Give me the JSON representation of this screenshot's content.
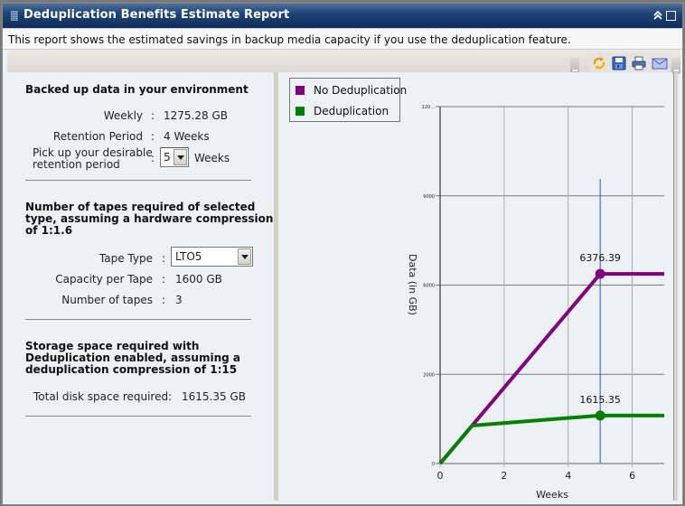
{
  "window": {
    "title": "Deduplication Benefits Estimate Report",
    "description": "This report shows the estimated savings in backup media capacity if you use the deduplication feature.",
    "controls": {
      "collapse": "collapse-icon",
      "maximize": "maximize-icon"
    }
  },
  "toolbar": {
    "icons": [
      {
        "name": "refresh-icon",
        "label": "Refresh"
      },
      {
        "name": "save-icon",
        "label": "Save"
      },
      {
        "name": "print-icon",
        "label": "Print"
      },
      {
        "name": "email-icon",
        "label": "Email"
      }
    ]
  },
  "backed_up": {
    "title": "Backed up data in your environment",
    "weekly_label": "Weekly",
    "weekly_value": "1275.28  GB",
    "retention_label": "Retention Period",
    "retention_value": "4  Weeks",
    "pick_label_line1": "Pick up your desirable",
    "pick_label_line2": "retention period",
    "pick_value": "5",
    "pick_unit": "Weeks",
    "colon": ":"
  },
  "tapes": {
    "title_line1": "Number of tapes required of selected",
    "title_line2": "type, assuming a hardware compression",
    "title_line3": "of 1:1.6",
    "tape_type_label": "Tape Type",
    "tape_type_value": "LTO5",
    "capacity_label": "Capacity per Tape",
    "capacity_value": "1600  GB",
    "count_label": "Number of tapes",
    "count_value": "3"
  },
  "storage": {
    "title_line1": "Storage space required with",
    "title_line2": "Deduplication enabled, assuming a",
    "title_line3": "deduplication compression of 1:15",
    "total_label": "Total disk space required",
    "total_value": "1615.35  GB"
  },
  "legend": {
    "items": [
      {
        "label": "No Deduplication",
        "color": "#800080"
      },
      {
        "label": "Deduplication",
        "color": "#008000"
      }
    ]
  },
  "chart_data": {
    "type": "line",
    "title": "",
    "xlabel": "Weeks",
    "ylabel": "Data (in GB)",
    "xlim": [
      0,
      7
    ],
    "ylim": [
      0,
      12000
    ],
    "x_ticks": [
      "0",
      "2",
      "4",
      "6"
    ],
    "y_ticks": [
      "0",
      "3000",
      "6000",
      "9000",
      "120..."
    ],
    "grid": true,
    "legend_position": "top-left",
    "marker_line_x": 5,
    "series": [
      {
        "name": "No Deduplication",
        "color": "#800080",
        "x": [
          0,
          1,
          5,
          7
        ],
        "values": [
          0,
          1275.28,
          6376.39,
          6376.39
        ],
        "annotation": {
          "x": 5,
          "y": 6376.39,
          "label": "6376.39"
        }
      },
      {
        "name": "Deduplication",
        "color": "#008000",
        "x": [
          0,
          1,
          5,
          7
        ],
        "values": [
          0,
          1275.28,
          1615.35,
          1615.35
        ],
        "annotation": {
          "x": 5,
          "y": 1615.35,
          "label": "1615.35"
        }
      }
    ]
  }
}
